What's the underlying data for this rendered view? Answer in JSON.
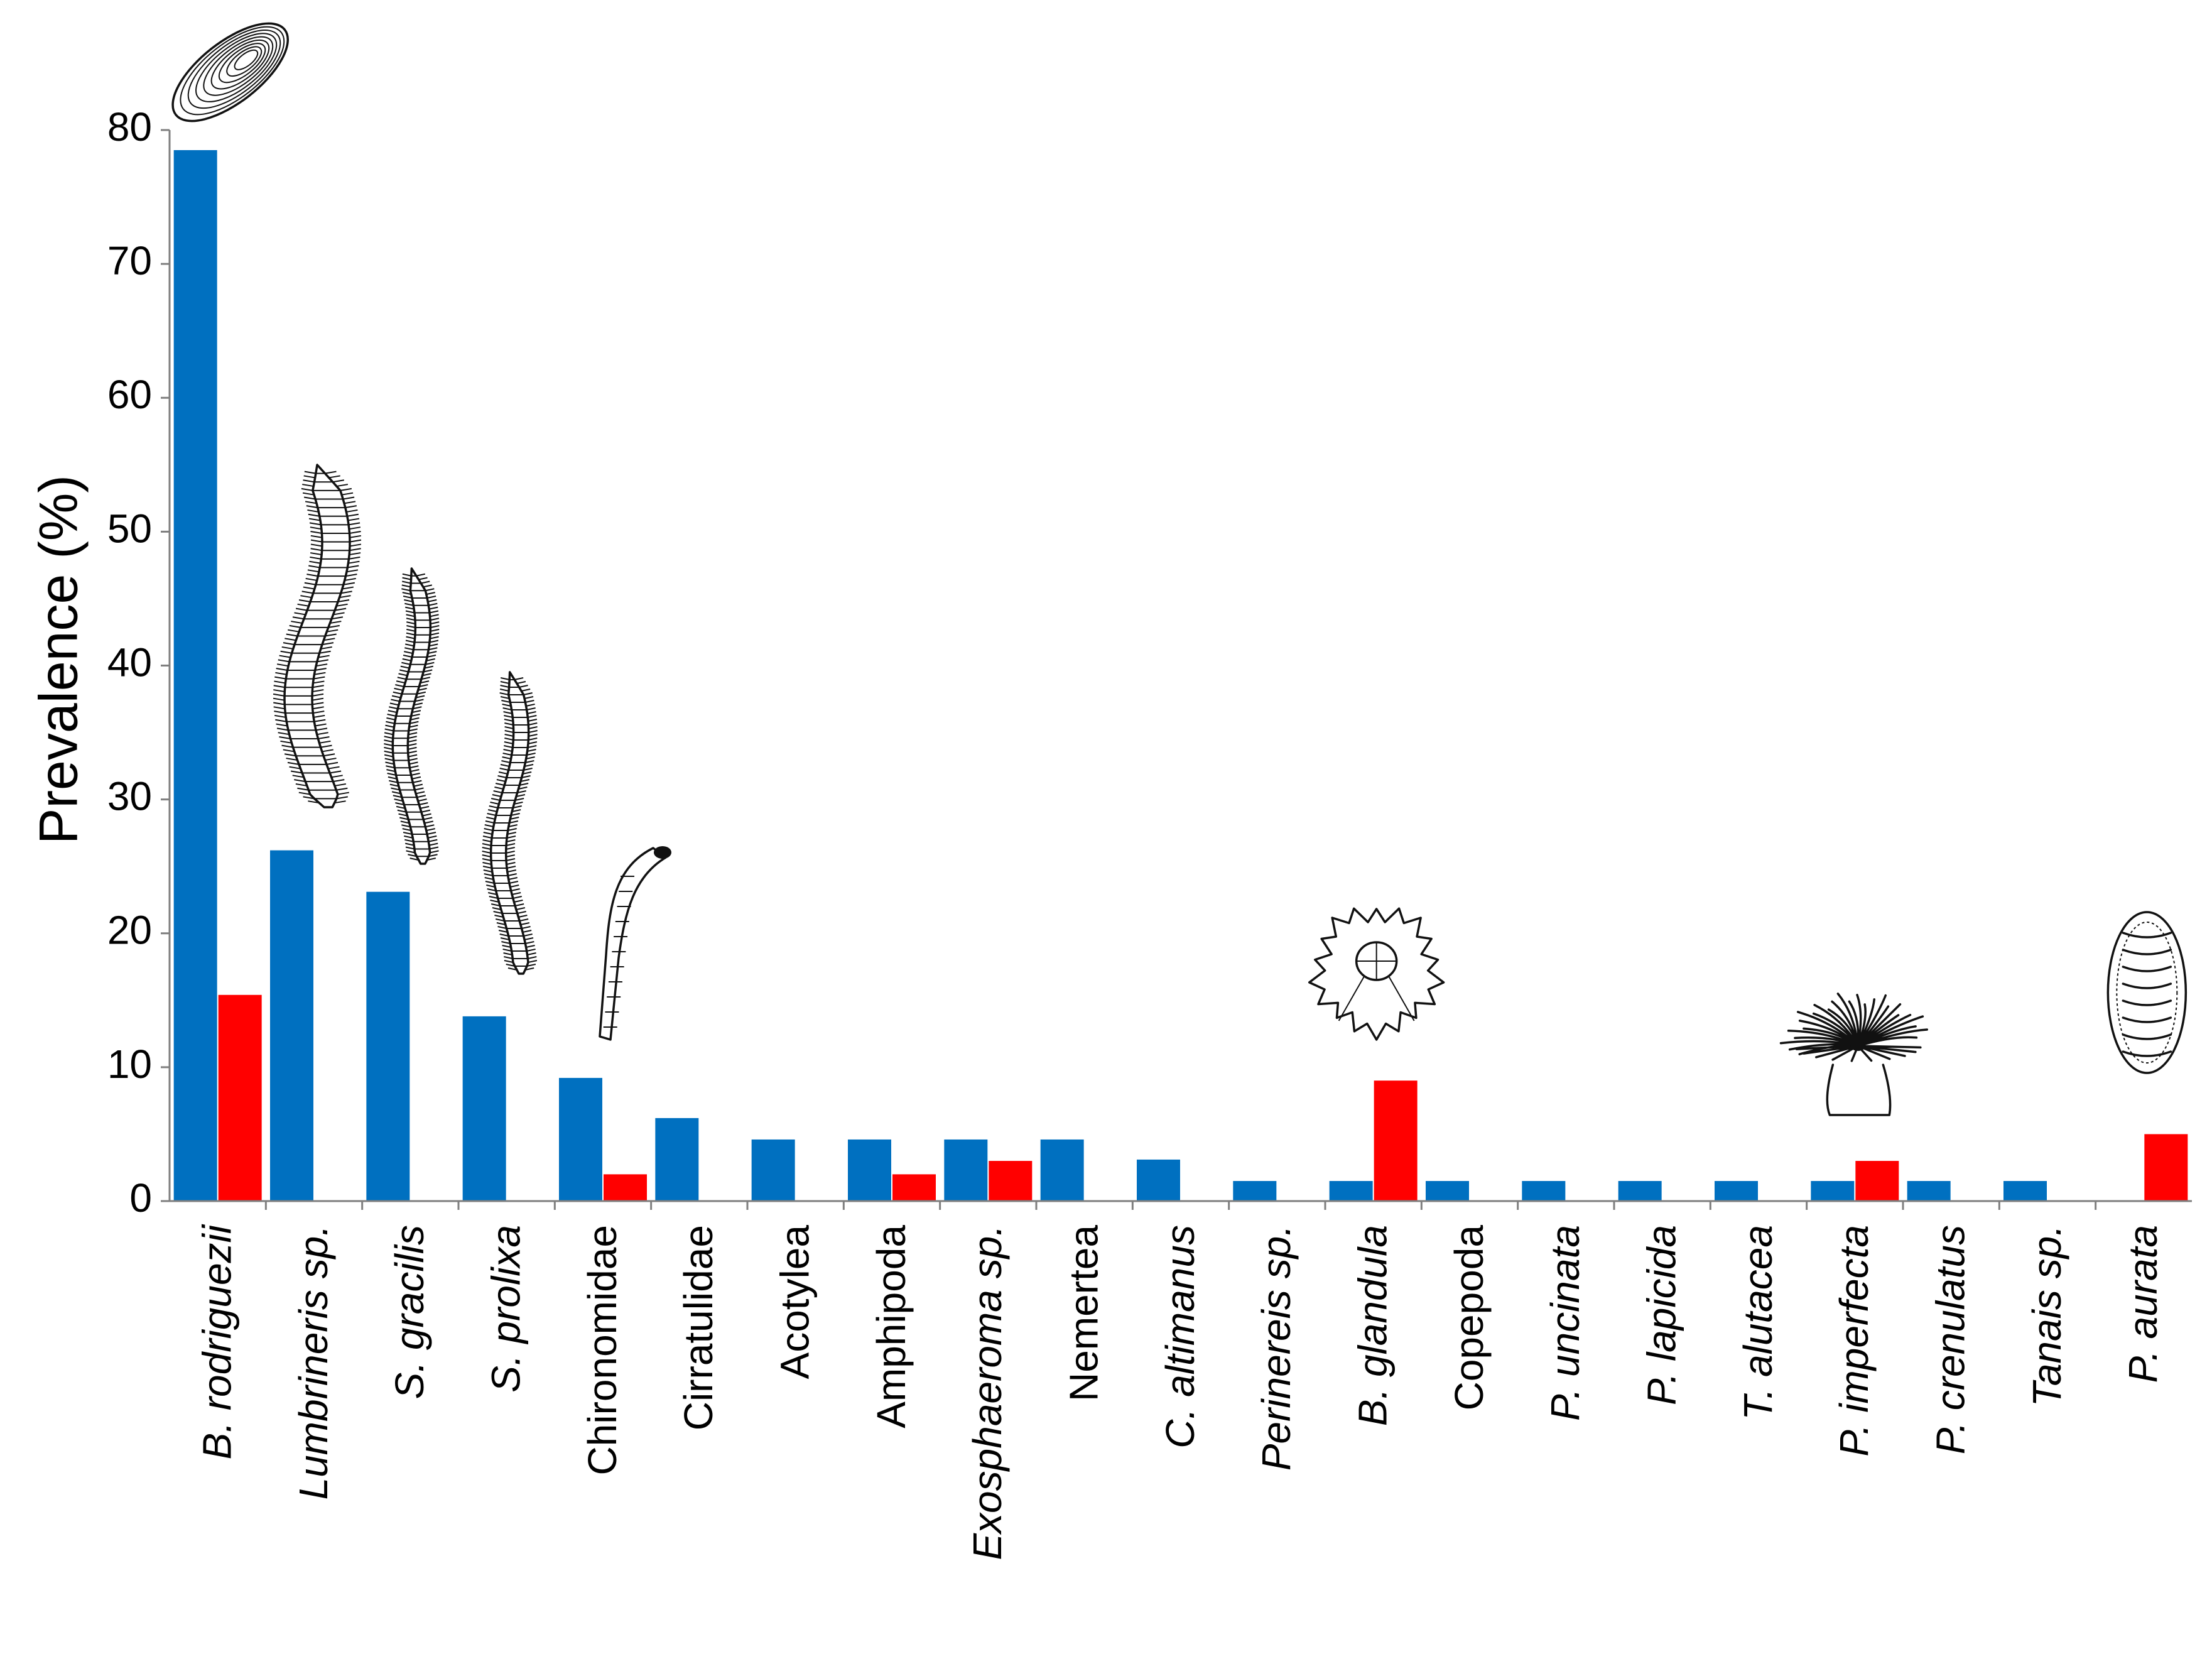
{
  "chart_data": {
    "type": "bar",
    "ylabel": "Prevalence (%)",
    "xlabel": "",
    "ylim": [
      0,
      80
    ],
    "yticks": [
      0,
      10,
      20,
      30,
      40,
      50,
      60,
      70,
      80
    ],
    "grid": false,
    "legend": "none",
    "categories": [
      {
        "label": "B. rodriguezii",
        "italic": true
      },
      {
        "label": "Lumbrineris sp.",
        "italic": true
      },
      {
        "label": "S. gracilis",
        "italic": true
      },
      {
        "label": "S. prolixa",
        "italic": true
      },
      {
        "label": "Chironomidae",
        "italic": false
      },
      {
        "label": "Cirratulidae",
        "italic": false
      },
      {
        "label": "Acotylea",
        "italic": false
      },
      {
        "label": "Amphipoda",
        "italic": false
      },
      {
        "label": "Exosphaeroma sp.",
        "italic": true
      },
      {
        "label": "Nemertea",
        "italic": false
      },
      {
        "label": "C. altimanus",
        "italic": true
      },
      {
        "label": "Perinereis sp.",
        "italic": true
      },
      {
        "label": "B. glandula",
        "italic": true
      },
      {
        "label": "Copepoda",
        "italic": false
      },
      {
        "label": "P. uncinata",
        "italic": true
      },
      {
        "label": "P. lapicida",
        "italic": true
      },
      {
        "label": "T. alutacea",
        "italic": true
      },
      {
        "label": "P. imperfecta",
        "italic": true
      },
      {
        "label": "P. crenulatus",
        "italic": true
      },
      {
        "label": "Tanais sp.",
        "italic": true
      },
      {
        "label": "P. aurata",
        "italic": true
      }
    ],
    "series": [
      {
        "color": "#0070c0",
        "values": [
          78.5,
          26.2,
          23.1,
          13.8,
          9.2,
          6.2,
          4.6,
          4.6,
          4.6,
          4.6,
          3.1,
          1.5,
          1.5,
          1.5,
          1.5,
          1.5,
          1.5,
          1.5,
          1.5,
          1.5,
          0
        ]
      },
      {
        "color": "#ff0000",
        "values": [
          15.4,
          0,
          0,
          0,
          2.0,
          0,
          0,
          2.0,
          3.0,
          0,
          0,
          0,
          9.0,
          0,
          0,
          0,
          0,
          3.0,
          0,
          0,
          5.0
        ]
      }
    ],
    "illustrations": [
      {
        "category": 0,
        "icon": "mussel-shell-icon"
      },
      {
        "category": 1,
        "icon": "polychaete-worm-icon"
      },
      {
        "category": 2,
        "icon": "polychaete-worm-icon"
      },
      {
        "category": 3,
        "icon": "polychaete-worm-icon"
      },
      {
        "category": 4,
        "icon": "chironomid-larva-icon"
      },
      {
        "category": 12,
        "icon": "barnacle-icon"
      },
      {
        "category": 17,
        "icon": "sea-anemone-icon"
      },
      {
        "category": 20,
        "icon": "chiton-icon"
      }
    ]
  }
}
